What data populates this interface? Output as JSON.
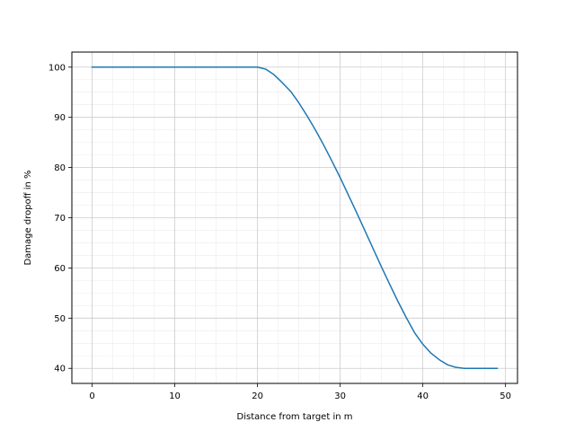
{
  "chart_data": {
    "type": "line",
    "title": "",
    "xlabel": "Distance from target in m",
    "ylabel": "Damage dropoff in %",
    "xlim": [
      -2.45,
      51.45
    ],
    "ylim": [
      37.0,
      103.0
    ],
    "xticks": [
      0,
      10,
      20,
      30,
      40,
      50
    ],
    "yticks": [
      40,
      50,
      60,
      70,
      80,
      90,
      100
    ],
    "xtick_labels": [
      "0",
      "10",
      "20",
      "30",
      "40",
      "50"
    ],
    "ytick_labels": [
      "40",
      "50",
      "60",
      "70",
      "80",
      "90",
      "100"
    ],
    "grid": {
      "major": true,
      "minor": true
    },
    "series": [
      {
        "color": "#1f77b4",
        "x": [
          0,
          1,
          2,
          3,
          4,
          5,
          6,
          7,
          8,
          9,
          10,
          11,
          12,
          13,
          14,
          15,
          16,
          17,
          18,
          19,
          20,
          21,
          22,
          23,
          24,
          25,
          26,
          27,
          28,
          29,
          30,
          31,
          32,
          33,
          34,
          35,
          36,
          37,
          38,
          39,
          40,
          41,
          42,
          43,
          44,
          45,
          46,
          47,
          48,
          49
        ],
        "y": [
          100,
          100,
          100,
          100,
          100,
          100,
          100,
          100,
          100,
          100,
          100,
          100,
          100,
          100,
          100,
          100,
          100,
          100,
          100,
          100,
          100,
          99.6,
          98.5,
          96.9,
          95.2,
          92.9,
          90.3,
          87.5,
          84.5,
          81.3,
          78.0,
          74.5,
          71.0,
          67.4,
          63.8,
          60.2,
          56.7,
          53.3,
          50.1,
          47.1,
          44.8,
          43.0,
          41.7,
          40.7,
          40.2,
          40.0,
          40.0,
          40.0,
          40.0,
          40.0
        ]
      }
    ]
  }
}
